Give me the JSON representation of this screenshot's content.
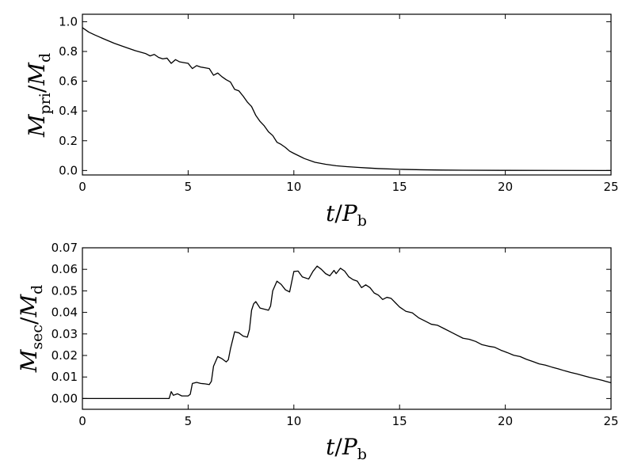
{
  "chart_data": [
    {
      "type": "line",
      "ylabel": {
        "main": "M",
        "sub1": "pri",
        "slash": "/",
        "main2": "M",
        "sub2": "d"
      },
      "xlabel": {
        "main": "t",
        "slash": "/",
        "main2": "P",
        "sub": "b"
      },
      "xlim": [
        0,
        25
      ],
      "ylim": [
        -0.03,
        1.05
      ],
      "x_ticks": [
        0,
        5,
        10,
        15,
        20,
        25
      ],
      "x_tick_labels": [
        "0",
        "5",
        "10",
        "15",
        "20",
        "25"
      ],
      "y_ticks": [
        0.0,
        0.2,
        0.4,
        0.6,
        0.8,
        1.0
      ],
      "y_tick_labels": [
        "0.0",
        "0.2",
        "0.4",
        "0.6",
        "0.8",
        "1.0"
      ],
      "grid": false,
      "series": [
        {
          "x": [
            0,
            0.3,
            0.6,
            1,
            1.5,
            2,
            2.5,
            3,
            3.2,
            3.4,
            3.6,
            3.8,
            4,
            4.2,
            4.4,
            4.6,
            4.8,
            5,
            5.2,
            5.4,
            5.6,
            5.8,
            6,
            6.2,
            6.4,
            6.6,
            6.8,
            7,
            7.2,
            7.4,
            7.6,
            7.8,
            8,
            8.2,
            8.4,
            8.6,
            8.8,
            9,
            9.2,
            9.4,
            9.6,
            9.8,
            10,
            10.5,
            11,
            11.5,
            12,
            12.5,
            13,
            13.5,
            14,
            15,
            16,
            17,
            18,
            20,
            22,
            25
          ],
          "y": [
            0.96,
            0.93,
            0.91,
            0.885,
            0.855,
            0.83,
            0.805,
            0.785,
            0.77,
            0.78,
            0.76,
            0.75,
            0.755,
            0.72,
            0.745,
            0.73,
            0.725,
            0.72,
            0.685,
            0.705,
            0.695,
            0.69,
            0.685,
            0.64,
            0.655,
            0.63,
            0.61,
            0.595,
            0.545,
            0.535,
            0.5,
            0.46,
            0.43,
            0.37,
            0.33,
            0.3,
            0.26,
            0.235,
            0.19,
            0.175,
            0.155,
            0.13,
            0.115,
            0.08,
            0.055,
            0.042,
            0.032,
            0.026,
            0.021,
            0.017,
            0.013,
            0.008,
            0.005,
            0.003,
            0.002,
            0.001,
            0.0005,
            0.0
          ]
        }
      ]
    },
    {
      "type": "line",
      "ylabel": {
        "main": "M",
        "sub1": "sec",
        "slash": "/",
        "main2": "M",
        "sub2": "d"
      },
      "xlabel": {
        "main": "t",
        "slash": "/",
        "main2": "P",
        "sub": "b"
      },
      "xlim": [
        0,
        25
      ],
      "ylim": [
        -0.005,
        0.07
      ],
      "x_ticks": [
        0,
        5,
        10,
        15,
        20,
        25
      ],
      "x_tick_labels": [
        "0",
        "5",
        "10",
        "15",
        "20",
        "25"
      ],
      "y_ticks": [
        0.0,
        0.01,
        0.02,
        0.03,
        0.04,
        0.05,
        0.06,
        0.07
      ],
      "y_tick_labels": [
        "0.00",
        "0.01",
        "0.02",
        "0.03",
        "0.04",
        "0.05",
        "0.06",
        "0.07"
      ],
      "grid": false,
      "series": [
        {
          "x": [
            0,
            4.1,
            4.2,
            4.3,
            4.5,
            4.7,
            5.0,
            5.1,
            5.2,
            5.4,
            5.6,
            5.8,
            6.0,
            6.1,
            6.2,
            6.4,
            6.6,
            6.8,
            6.9,
            7.0,
            7.2,
            7.4,
            7.6,
            7.8,
            7.9,
            8.0,
            8.1,
            8.2,
            8.4,
            8.6,
            8.8,
            8.9,
            9.0,
            9.2,
            9.4,
            9.6,
            9.8,
            10.0,
            10.2,
            10.4,
            10.7,
            10.9,
            11.1,
            11.3,
            11.5,
            11.7,
            11.9,
            12.0,
            12.2,
            12.4,
            12.6,
            12.8,
            13.0,
            13.2,
            13.4,
            13.6,
            13.8,
            14.0,
            14.2,
            14.4,
            14.6,
            14.8,
            15.0,
            15.3,
            15.6,
            15.9,
            16.2,
            16.5,
            16.8,
            17.1,
            17.4,
            17.7,
            18.0,
            18.3,
            18.6,
            18.9,
            19.2,
            19.5,
            19.8,
            20.1,
            20.4,
            20.7,
            21.0,
            21.3,
            21.6,
            21.9,
            22.2,
            22.5,
            22.8,
            23.1,
            23.4,
            23.7,
            24.0,
            24.3,
            24.6,
            25.0
          ],
          "y": [
            0.0,
            0.0,
            0.0032,
            0.0015,
            0.0022,
            0.0012,
            0.0012,
            0.002,
            0.007,
            0.0075,
            0.007,
            0.0068,
            0.0065,
            0.008,
            0.015,
            0.0195,
            0.0185,
            0.017,
            0.018,
            0.023,
            0.031,
            0.0305,
            0.029,
            0.0285,
            0.032,
            0.041,
            0.044,
            0.045,
            0.042,
            0.0415,
            0.041,
            0.043,
            0.05,
            0.0545,
            0.053,
            0.0505,
            0.0495,
            0.059,
            0.0592,
            0.0565,
            0.0555,
            0.059,
            0.0615,
            0.06,
            0.058,
            0.057,
            0.0595,
            0.058,
            0.0605,
            0.0592,
            0.0565,
            0.0552,
            0.0545,
            0.0515,
            0.0528,
            0.0515,
            0.049,
            0.048,
            0.046,
            0.047,
            0.0465,
            0.0445,
            0.0425,
            0.0405,
            0.0398,
            0.0375,
            0.036,
            0.0345,
            0.034,
            0.0325,
            0.031,
            0.0295,
            0.028,
            0.0275,
            0.0265,
            0.025,
            0.0243,
            0.0238,
            0.0224,
            0.0213,
            0.0201,
            0.0195,
            0.0182,
            0.0172,
            0.0161,
            0.0155,
            0.0146,
            0.0138,
            0.0129,
            0.0121,
            0.0114,
            0.0106,
            0.0098,
            0.0091,
            0.0084,
            0.0073
          ]
        }
      ]
    }
  ]
}
